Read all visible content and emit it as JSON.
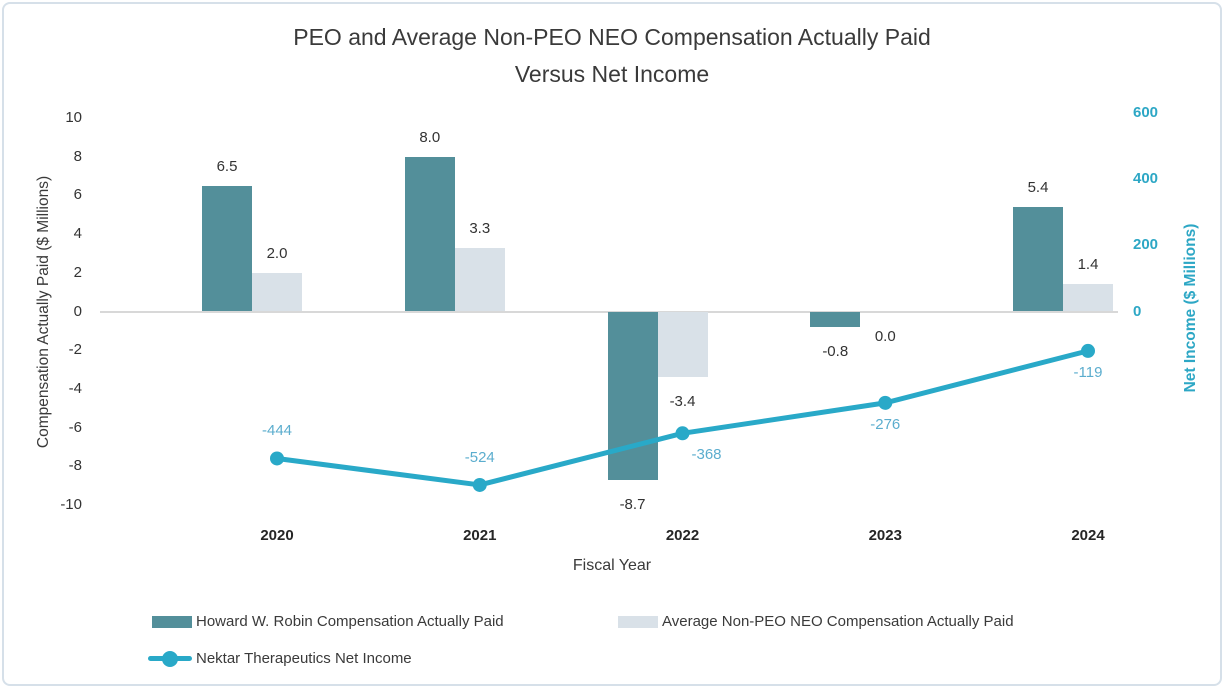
{
  "title": {
    "line1": "PEO and Average Non-PEO NEO Compensation Actually Paid",
    "line2": "Versus Net Income"
  },
  "axes": {
    "left": {
      "title": "Compensation Actually Paid ($ Millions)",
      "ticks": [
        10,
        8,
        6,
        4,
        2,
        0,
        -2,
        -4,
        -6,
        -8,
        -10
      ],
      "range": [
        -10,
        10
      ]
    },
    "right": {
      "title": "Net Income ($ Millions)",
      "ticks": [
        600,
        400,
        200,
        0
      ],
      "range_shown": [
        0,
        600
      ]
    },
    "x": {
      "title": "Fiscal Year"
    }
  },
  "chart_data": {
    "type": "bar+line",
    "categories": [
      "2020",
      "2021",
      "2022",
      "2023",
      "2024"
    ],
    "series": [
      {
        "name": "Howard W. Robin Compensation Actually Paid",
        "type": "bar",
        "axis": "left",
        "color": "#538f9a",
        "values": [
          6.5,
          8.0,
          -8.7,
          -0.8,
          5.4
        ],
        "labels": [
          "6.5",
          "8.0",
          "-8.7",
          "-0.8",
          "5.4"
        ]
      },
      {
        "name": "Average Non-PEO NEO Compensation Actually Paid",
        "type": "bar",
        "axis": "left",
        "color": "#d9e1e8",
        "values": [
          2.0,
          3.3,
          -3.4,
          0.0,
          1.4
        ],
        "labels": [
          "2.0",
          "3.3",
          "-3.4",
          "0.0",
          "1.4"
        ]
      },
      {
        "name": "Nektar Therapeutics Net Income",
        "type": "line",
        "axis": "right",
        "color": "#29a9c8",
        "label_color": "#5badce",
        "values": [
          -444,
          -524,
          -368,
          -276,
          -119
        ],
        "labels": [
          "-444",
          "-524",
          "-368",
          "-276",
          "-119"
        ],
        "label_positions": [
          "above",
          "above",
          "below-right",
          "below",
          "below"
        ]
      }
    ],
    "left_axis_range": [
      -10,
      10
    ],
    "right_axis_ticks_shown": [
      0,
      600
    ],
    "grid": "zero-line-only",
    "legend_position": "bottom-left"
  },
  "colors": {
    "right_axis": "#2da7c5",
    "zero_line": "#d8d8d8",
    "card_border": "#d6e0e9",
    "text": "#3a3a3a"
  }
}
